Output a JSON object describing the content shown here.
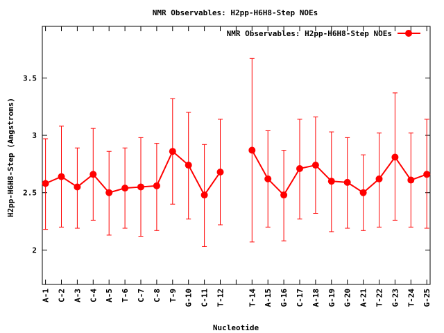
{
  "chart_data": {
    "type": "line",
    "title": "NMR Observables: H2pp-H6H8-Step NOEs",
    "xlabel": "Nucleotide",
    "ylabel": "H2pp-H6H8-Step (Angstroms)",
    "ylim": [
      1.7,
      3.95
    ],
    "yticks": [
      2,
      2.5,
      3,
      3.5
    ],
    "ytick_labels": [
      "2",
      "2.5",
      "3",
      "3.5"
    ],
    "grid": false,
    "legend": "top-right",
    "colors": {
      "series": "#ff0000",
      "axis": "#000000"
    },
    "categories": [
      "A-1",
      "C-2",
      "A-3",
      "C-4",
      "A-5",
      "T-6",
      "C-7",
      "C-8",
      "T-9",
      "G-10",
      "C-11",
      "T-12",
      "",
      "T-14",
      "A-15",
      "G-16",
      "C-17",
      "A-18",
      "G-19",
      "G-20",
      "A-21",
      "T-22",
      "G-23",
      "T-24",
      "G-25"
    ],
    "series": [
      {
        "name": "NMR Observables: H2pp-H6H8-Step NOEs",
        "values": [
          2.58,
          2.64,
          2.55,
          2.66,
          2.5,
          2.54,
          2.55,
          2.56,
          2.86,
          2.74,
          2.48,
          2.68,
          null,
          2.87,
          2.62,
          2.48,
          2.71,
          2.74,
          2.6,
          2.59,
          2.5,
          2.62,
          2.81,
          2.61,
          2.66
        ],
        "err_low": [
          2.18,
          2.2,
          2.19,
          2.26,
          2.13,
          2.19,
          2.12,
          2.17,
          2.4,
          2.27,
          2.03,
          2.22,
          null,
          2.07,
          2.2,
          2.08,
          2.27,
          2.32,
          2.16,
          2.19,
          2.17,
          2.2,
          2.26,
          2.2,
          2.19
        ],
        "err_high": [
          2.97,
          3.08,
          2.89,
          3.06,
          2.86,
          2.89,
          2.98,
          2.93,
          3.32,
          3.2,
          2.92,
          3.14,
          null,
          3.67,
          3.04,
          2.87,
          3.14,
          3.16,
          3.03,
          2.98,
          2.83,
          3.02,
          3.37,
          3.02,
          3.14
        ]
      }
    ]
  }
}
